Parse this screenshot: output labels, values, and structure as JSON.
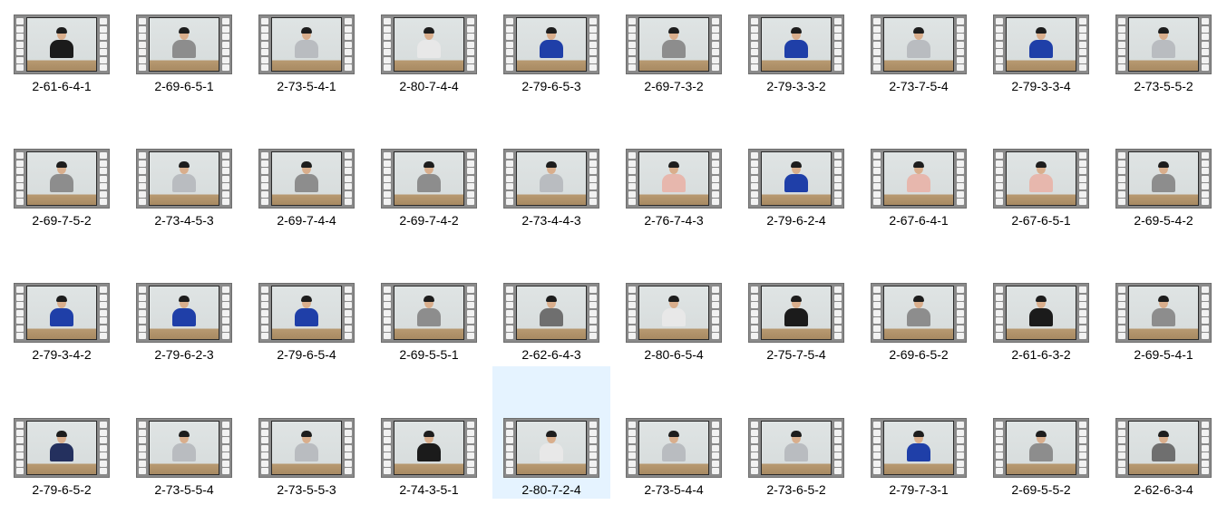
{
  "colors": {
    "selection": "#e5f3ff",
    "shirt_blue": "#1f3fa8",
    "shirt_gray": "#8d8d8d",
    "shirt_lightgray": "#b9bcc0",
    "shirt_white": "#e8e8e8",
    "shirt_pink": "#e7b7ad",
    "shirt_black": "#1b1b1b",
    "shirt_stripe": "#6f6f6f",
    "shirt_navy": "#24305e"
  },
  "icon": "video-file-icon",
  "files": [
    {
      "name": "2-61-6-4-1",
      "shirt": "#1b1b1b"
    },
    {
      "name": "2-69-6-5-1",
      "shirt": "#8d8d8d"
    },
    {
      "name": "2-73-5-4-1",
      "shirt": "#b9bcc0"
    },
    {
      "name": "2-80-7-4-4",
      "shirt": "#e8e8e8"
    },
    {
      "name": "2-79-6-5-3",
      "shirt": "#1f3fa8"
    },
    {
      "name": "2-69-7-3-2",
      "shirt": "#8d8d8d"
    },
    {
      "name": "2-79-3-3-2",
      "shirt": "#1f3fa8"
    },
    {
      "name": "2-73-7-5-4",
      "shirt": "#b9bcc0"
    },
    {
      "name": "2-79-3-3-4",
      "shirt": "#1f3fa8"
    },
    {
      "name": "2-73-5-5-2",
      "shirt": "#b9bcc0"
    },
    {
      "name": "2-69-7-5-2",
      "shirt": "#8d8d8d"
    },
    {
      "name": "2-73-4-5-3",
      "shirt": "#b9bcc0"
    },
    {
      "name": "2-69-7-4-4",
      "shirt": "#8d8d8d"
    },
    {
      "name": "2-69-7-4-2",
      "shirt": "#8d8d8d"
    },
    {
      "name": "2-73-4-4-3",
      "shirt": "#b9bcc0"
    },
    {
      "name": "2-76-7-4-3",
      "shirt": "#e7b7ad"
    },
    {
      "name": "2-79-6-2-4",
      "shirt": "#1f3fa8"
    },
    {
      "name": "2-67-6-4-1",
      "shirt": "#e7b7ad"
    },
    {
      "name": "2-67-6-5-1",
      "shirt": "#e7b7ad"
    },
    {
      "name": "2-69-5-4-2",
      "shirt": "#8d8d8d"
    },
    {
      "name": "2-79-3-4-2",
      "shirt": "#1f3fa8"
    },
    {
      "name": "2-79-6-2-3",
      "shirt": "#1f3fa8"
    },
    {
      "name": "2-79-6-5-4",
      "shirt": "#1f3fa8"
    },
    {
      "name": "2-69-5-5-1",
      "shirt": "#8d8d8d"
    },
    {
      "name": "2-62-6-4-3",
      "shirt": "#6f6f6f"
    },
    {
      "name": "2-80-6-5-4",
      "shirt": "#e8e8e8"
    },
    {
      "name": "2-75-7-5-4",
      "shirt": "#1b1b1b"
    },
    {
      "name": "2-69-6-5-2",
      "shirt": "#8d8d8d"
    },
    {
      "name": "2-61-6-3-2",
      "shirt": "#1b1b1b"
    },
    {
      "name": "2-69-5-4-1",
      "shirt": "#8d8d8d"
    },
    {
      "name": "2-79-6-5-2",
      "shirt": "#24305e"
    },
    {
      "name": "2-73-5-5-4",
      "shirt": "#b9bcc0"
    },
    {
      "name": "2-73-5-5-3",
      "shirt": "#b9bcc0"
    },
    {
      "name": "2-74-3-5-1",
      "shirt": "#1b1b1b"
    },
    {
      "name": "2-80-7-2-4",
      "shirt": "#e8e8e8",
      "selected": true
    },
    {
      "name": "2-73-5-4-4",
      "shirt": "#b9bcc0"
    },
    {
      "name": "2-73-6-5-2",
      "shirt": "#b9bcc0"
    },
    {
      "name": "2-79-7-3-1",
      "shirt": "#1f3fa8"
    },
    {
      "name": "2-69-5-5-2",
      "shirt": "#8d8d8d"
    },
    {
      "name": "2-62-6-3-4",
      "shirt": "#6f6f6f"
    }
  ]
}
